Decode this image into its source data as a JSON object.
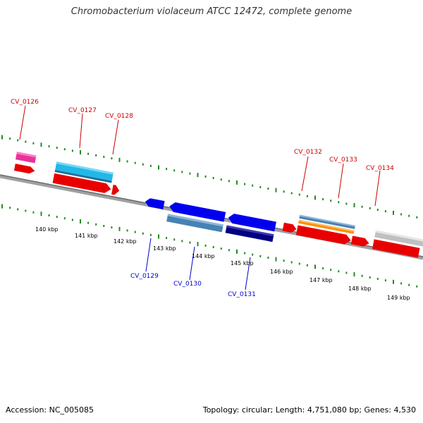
{
  "title": "Chromobacterium violaceum ATCC 12472, complete genome",
  "footer": {
    "accession": "Accession: NC_005085",
    "topology": "Topology: circular; Length: 4,751,080 bp; Genes: 4,530"
  },
  "colors": {
    "backbone": "#808080",
    "tick": "#228b22",
    "label_red": "#cc0000",
    "label_blue": "#0000cc"
  },
  "kbp_labels": [
    "140 kbp",
    "141 kbp",
    "142 kbp",
    "143 kbp",
    "144 kbp",
    "145 kbp",
    "146 kbp",
    "147 kbp",
    "148 kbp",
    "149 kbp"
  ],
  "top_labels": [
    "CV_0126",
    "CV_0127",
    "CV_0128",
    "CV_0132",
    "CV_0133",
    "CV_0134"
  ],
  "bottom_labels": [
    "CV_0129",
    "CV_0130",
    "CV_0131"
  ]
}
